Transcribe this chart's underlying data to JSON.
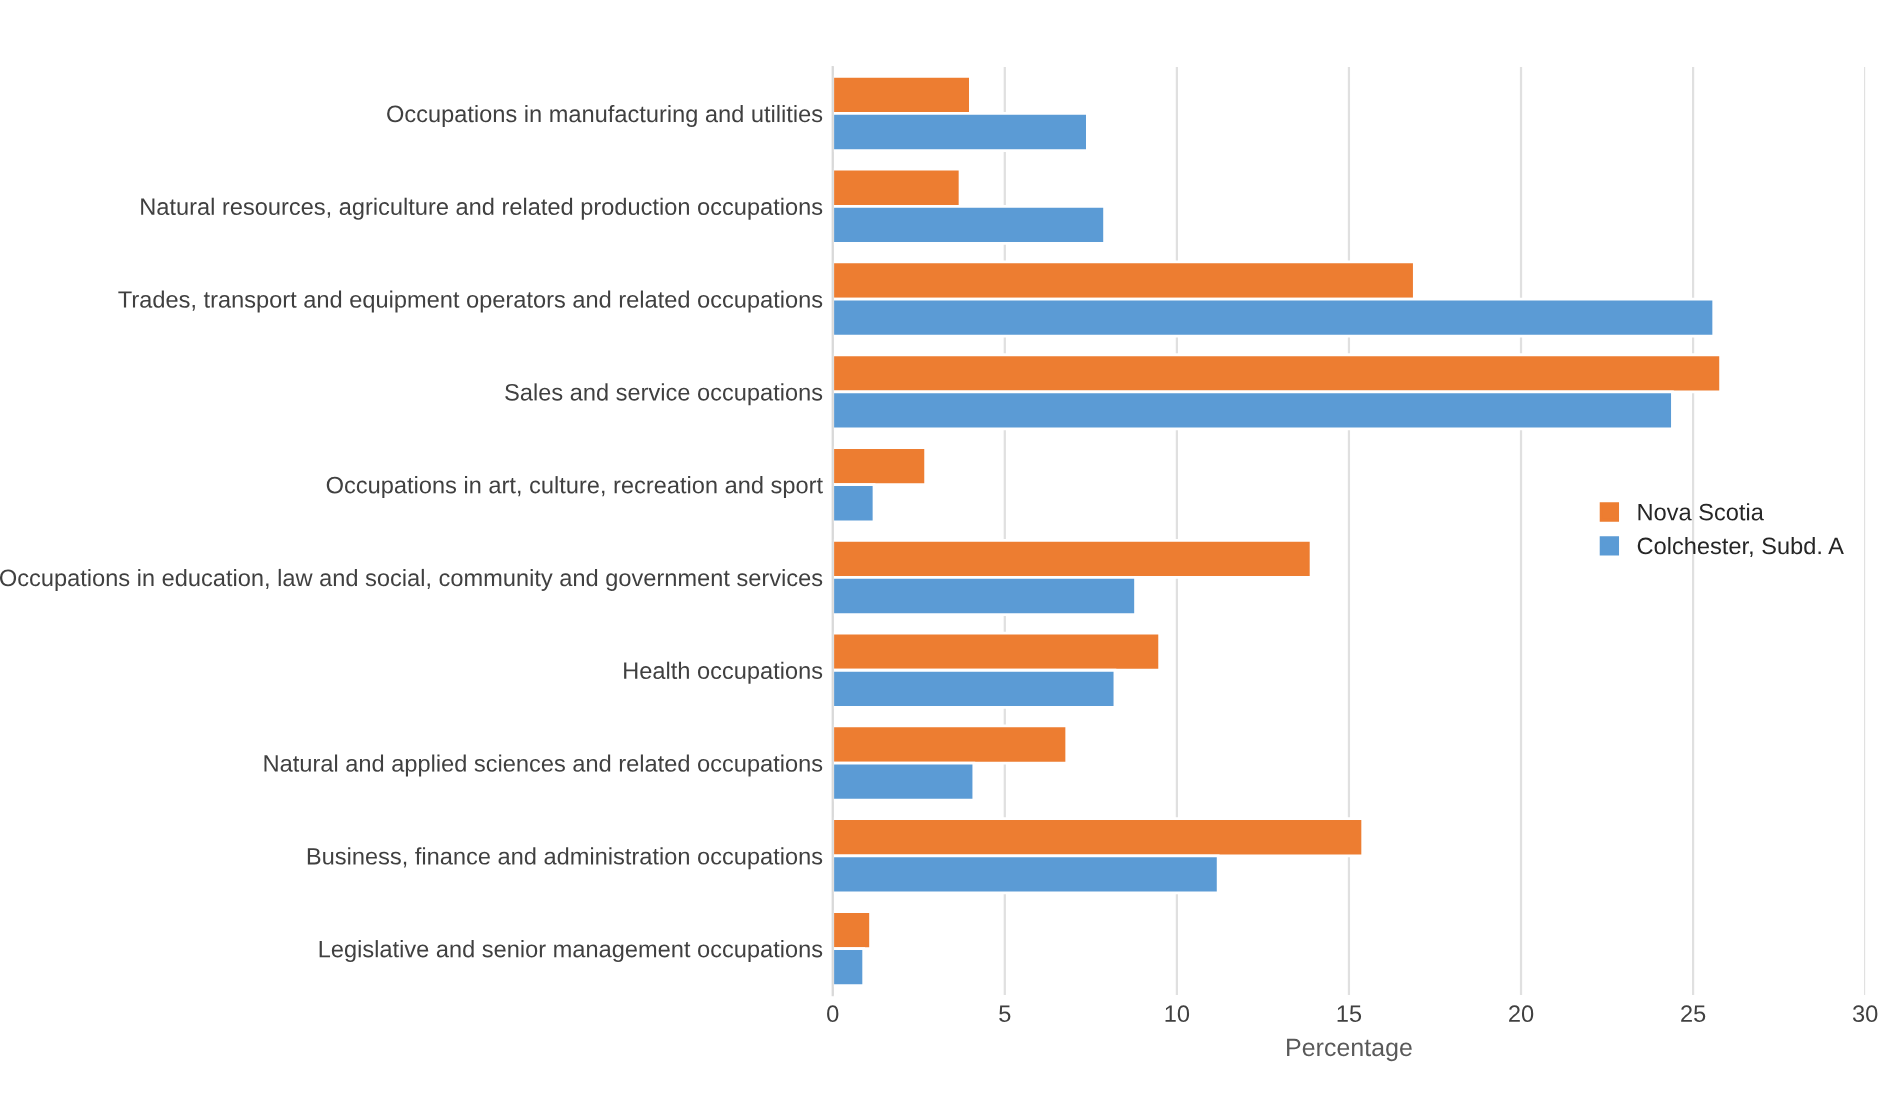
{
  "chart_data": {
    "type": "bar",
    "orientation": "horizontal",
    "xlabel": "Percentage",
    "categories": [
      "Occupations in manufacturing and utilities",
      "Natural resources, agriculture and related production occupations",
      "Trades, transport and equipment operators and related occupations",
      "Sales and service occupations",
      "Occupations in art, culture, recreation and sport",
      "Occupations in education, law and social, community and government services",
      "Health occupations",
      "Natural and applied sciences and related occupations",
      "Business, finance and administration occupations",
      "Legislative and senior management occupations"
    ],
    "series": [
      {
        "name": "Nova Scotia",
        "color": "#ed7d31",
        "values": [
          4.0,
          3.7,
          16.9,
          25.8,
          2.7,
          13.9,
          9.5,
          6.8,
          15.4,
          1.1
        ]
      },
      {
        "name": "Colchester, Subd. A",
        "color": "#5b9bd5",
        "values": [
          7.4,
          7.9,
          25.6,
          24.4,
          1.2,
          8.8,
          8.2,
          4.1,
          11.2,
          0.9
        ]
      }
    ],
    "xlim": [
      0,
      30
    ],
    "xticks": [
      0,
      5,
      10,
      15,
      20,
      25,
      30
    ],
    "grid": "x",
    "legend": "right"
  }
}
